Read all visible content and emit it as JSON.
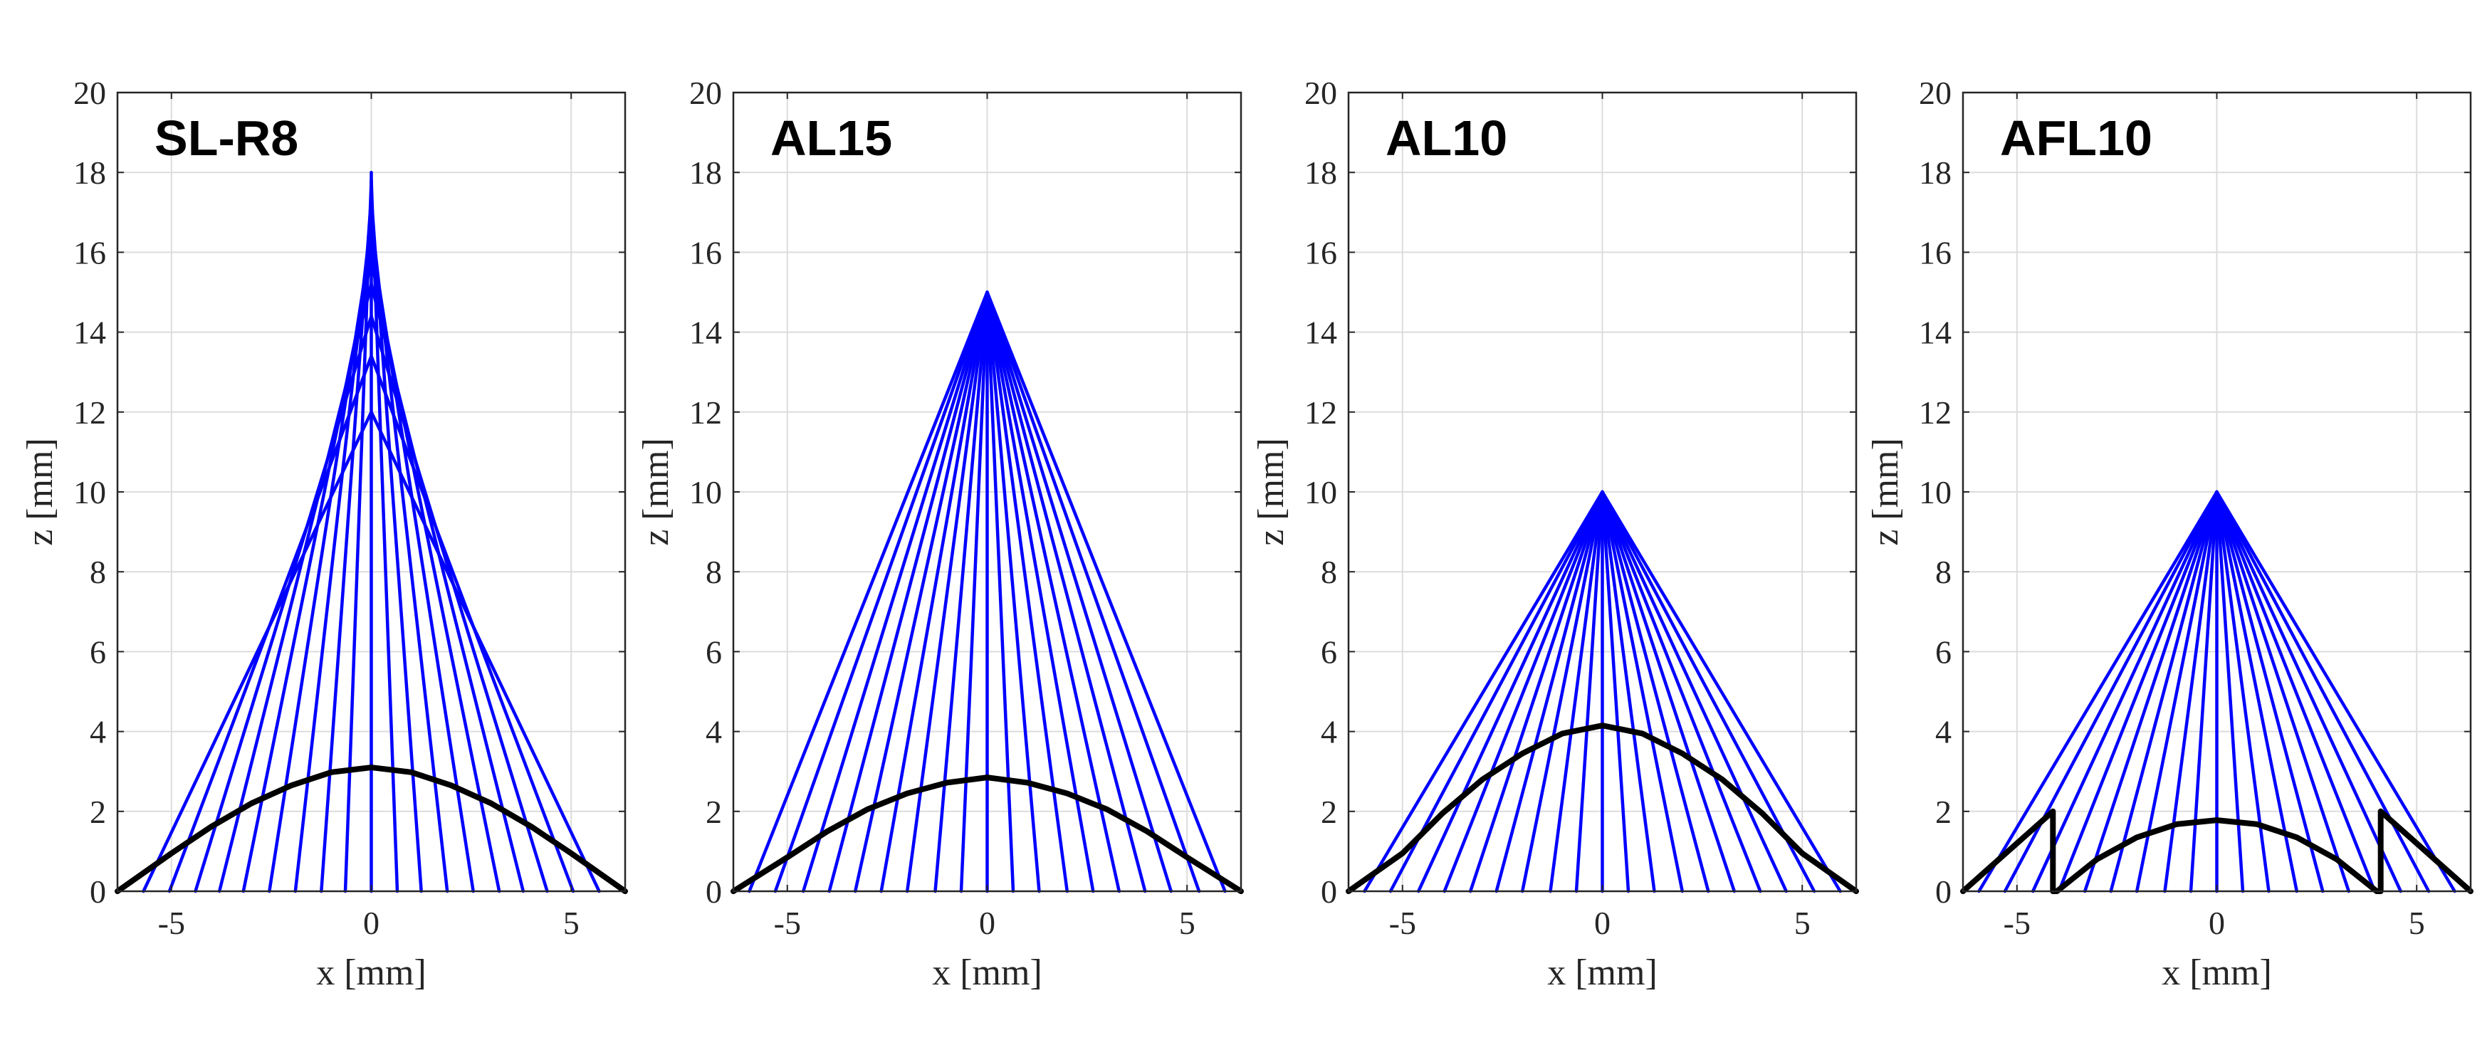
{
  "figure": {
    "colors": {
      "ray": "#0000ff",
      "lens": "#000000",
      "grid": "#dcdcdc",
      "axis": "#262626"
    }
  },
  "chart_data": [
    {
      "type": "line",
      "title": "SL-R8",
      "xlabel": "x [mm]",
      "ylabel": "z [mm]",
      "xlim": [
        -6.35,
        6.35
      ],
      "ylim": [
        0,
        20
      ],
      "xticks": [
        -5,
        0,
        5
      ],
      "yticks": [
        0,
        2,
        4,
        6,
        8,
        10,
        12,
        14,
        16,
        18,
        20
      ],
      "grid": true,
      "series": [
        {
          "kind": "rays",
          "color": "#0000ff",
          "focus": "variable",
          "ray_x": [
            -5.7,
            -5.05,
            -4.4,
            -3.8,
            -3.2,
            -2.55,
            -1.9,
            -1.25,
            -0.65,
            0,
            0.65,
            1.25,
            1.9,
            2.55,
            3.2,
            3.8,
            4.4,
            5.05,
            5.7
          ],
          "focus_z": [
            12.0,
            13.4,
            14.4,
            15.2,
            15.8,
            16.4,
            16.9,
            17.4,
            17.8,
            18.0,
            17.8,
            17.4,
            16.9,
            16.4,
            15.8,
            15.2,
            14.4,
            13.4,
            12.0
          ]
        },
        {
          "kind": "lens",
          "color": "#000000",
          "shape": "dome",
          "x": [
            -6.35,
            -5,
            -4,
            -3,
            -2,
            -1,
            0,
            1,
            2,
            3,
            4,
            5,
            6.35
          ],
          "z": [
            0,
            0.95,
            1.62,
            2.2,
            2.65,
            2.98,
            3.1,
            2.98,
            2.65,
            2.2,
            1.62,
            0.95,
            0
          ]
        }
      ]
    },
    {
      "type": "line",
      "title": "AL15",
      "xlabel": "x [mm]",
      "ylabel": "z [mm]",
      "xlim": [
        -6.35,
        6.35
      ],
      "ylim": [
        0,
        20
      ],
      "xticks": [
        -5,
        0,
        5
      ],
      "yticks": [
        0,
        2,
        4,
        6,
        8,
        10,
        12,
        14,
        16,
        18,
        20
      ],
      "grid": true,
      "series": [
        {
          "kind": "rays",
          "color": "#0000ff",
          "focus": "point",
          "focus_z": 15,
          "ray_x": [
            -5.95,
            -5.3,
            -4.6,
            -3.95,
            -3.3,
            -2.65,
            -2.0,
            -1.3,
            -0.65,
            0,
            0.65,
            1.3,
            2.0,
            2.65,
            3.3,
            3.95,
            4.6,
            5.3,
            5.95
          ]
        },
        {
          "kind": "lens",
          "color": "#000000",
          "shape": "dome",
          "x": [
            -6.35,
            -5,
            -4,
            -3,
            -2,
            -1,
            0,
            1,
            2,
            3,
            4,
            5,
            6.35
          ],
          "z": [
            0,
            0.85,
            1.5,
            2.05,
            2.45,
            2.72,
            2.85,
            2.72,
            2.45,
            2.05,
            1.5,
            0.85,
            0
          ]
        }
      ]
    },
    {
      "type": "line",
      "title": "AL10",
      "xlabel": "x [mm]",
      "ylabel": "z [mm]",
      "xlim": [
        -6.35,
        6.35
      ],
      "ylim": [
        0,
        20
      ],
      "xticks": [
        -5,
        0,
        5
      ],
      "yticks": [
        0,
        2,
        4,
        6,
        8,
        10,
        12,
        14,
        16,
        18,
        20
      ],
      "grid": true,
      "series": [
        {
          "kind": "rays",
          "color": "#0000ff",
          "focus": "point",
          "focus_z": 10,
          "ray_x": [
            -5.95,
            -5.3,
            -4.6,
            -3.95,
            -3.3,
            -2.65,
            -2.0,
            -1.3,
            -0.65,
            0,
            0.65,
            1.3,
            2.0,
            2.65,
            3.3,
            3.95,
            4.6,
            5.3,
            5.95
          ]
        },
        {
          "kind": "lens",
          "color": "#000000",
          "shape": "dome",
          "x": [
            -6.35,
            -5,
            -4,
            -3,
            -2,
            -1,
            0,
            1,
            2,
            3,
            4,
            5,
            6.35
          ],
          "z": [
            0,
            0.95,
            1.95,
            2.8,
            3.45,
            3.95,
            4.15,
            3.95,
            3.45,
            2.8,
            1.95,
            0.95,
            0
          ]
        }
      ]
    },
    {
      "type": "line",
      "title": "AFL10",
      "xlabel": "x [mm]",
      "ylabel": "z [mm]",
      "xlim": [
        -6.35,
        6.35
      ],
      "ylim": [
        0,
        20
      ],
      "xticks": [
        -5,
        0,
        5
      ],
      "yticks": [
        0,
        2,
        4,
        6,
        8,
        10,
        12,
        14,
        16,
        18,
        20
      ],
      "grid": true,
      "series": [
        {
          "kind": "rays",
          "color": "#0000ff",
          "focus": "point",
          "focus_z": 10,
          "ray_x": [
            -5.95,
            -5.3,
            -4.6,
            -3.95,
            -3.3,
            -2.65,
            -2.0,
            -1.3,
            -0.65,
            0,
            0.65,
            1.3,
            2.0,
            2.65,
            3.3,
            3.95,
            4.6,
            5.3,
            5.95
          ]
        },
        {
          "kind": "lens",
          "color": "#000000",
          "shape": "fresnel",
          "x": [
            -6.35,
            -4.1,
            -4.1,
            -4.0,
            -3,
            -2,
            -1,
            0,
            1,
            2,
            3,
            4.0,
            4.1,
            4.1,
            6.35
          ],
          "z": [
            0,
            2.0,
            0,
            0,
            0.8,
            1.35,
            1.68,
            1.78,
            1.68,
            1.35,
            0.8,
            0,
            0,
            2.0,
            0
          ]
        }
      ]
    }
  ]
}
